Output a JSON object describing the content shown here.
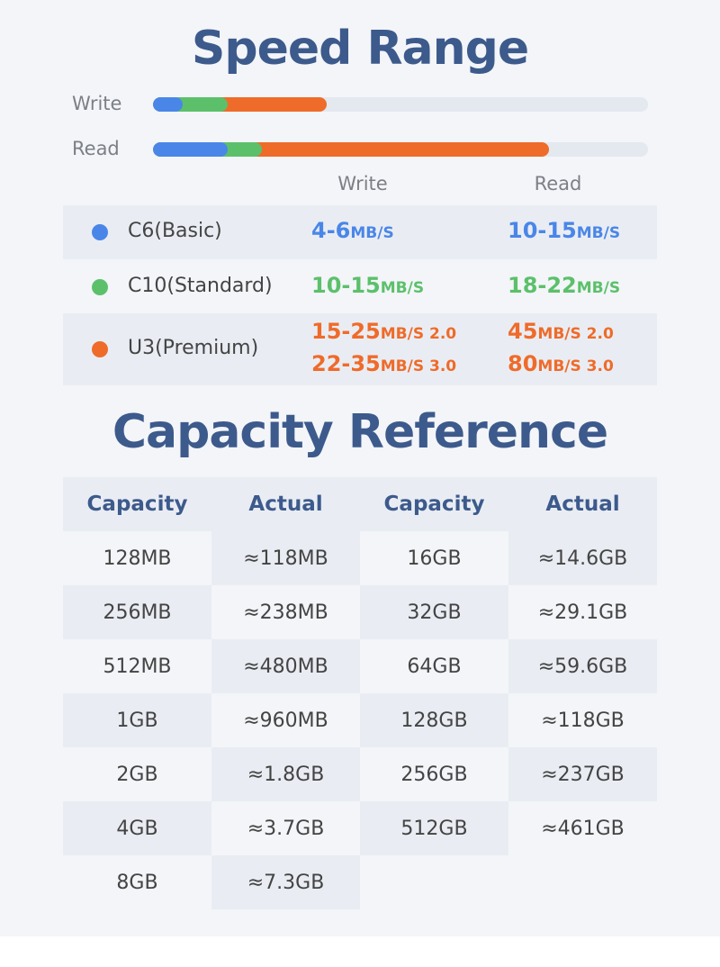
{
  "speed": {
    "title": "Speed Range",
    "write_label": "Write",
    "read_label": "Read",
    "write_bar": [
      {
        "color": "#4a86e8",
        "from": 0.0,
        "to": 0.06
      },
      {
        "color": "#5cc06b",
        "from": 0.06,
        "to": 0.15
      },
      {
        "color": "#ef6b2a",
        "from": 0.15,
        "to": 0.35
      }
    ],
    "read_bar": [
      {
        "color": "#4a86e8",
        "from": 0.0,
        "to": 0.15
      },
      {
        "color": "#5cc06b",
        "from": 0.15,
        "to": 0.22
      },
      {
        "color": "#ef6b2a",
        "from": 0.22,
        "to": 0.8
      }
    ],
    "col_write": "Write",
    "col_read": "Read",
    "rows": [
      {
        "name": "C6(Basic)",
        "color": "#4a86e8",
        "write": [
          {
            "num": "4-6",
            "unit": "MB/S"
          }
        ],
        "read": [
          {
            "num": "10-15",
            "unit": "MB/S"
          }
        ]
      },
      {
        "name": "C10(Standard)",
        "color": "#5cc06b",
        "write": [
          {
            "num": "10-15",
            "unit": "MB/S"
          }
        ],
        "read": [
          {
            "num": "18-22",
            "unit": "MB/S"
          }
        ]
      },
      {
        "name": "U3(Premium)",
        "color": "#ef6b2a",
        "write": [
          {
            "num": "15-25",
            "unit": "MB/S 2.0"
          },
          {
            "num": "22-35",
            "unit": "MB/S 3.0"
          }
        ],
        "read": [
          {
            "num": "45",
            "unit": "MB/S 2.0"
          },
          {
            "num": "80",
            "unit": "MB/S 3.0"
          }
        ]
      }
    ]
  },
  "capacity": {
    "title": "Capacity Reference",
    "headers": [
      "Capacity",
      "Actual",
      "Capacity",
      "Actual"
    ],
    "rows": [
      [
        "128MB",
        "≈118MB",
        "16GB",
        "≈14.6GB"
      ],
      [
        "256MB",
        "≈238MB",
        "32GB",
        "≈29.1GB"
      ],
      [
        "512MB",
        "≈480MB",
        "64GB",
        "≈59.6GB"
      ],
      [
        "1GB",
        "≈960MB",
        "128GB",
        "≈118GB"
      ],
      [
        "2GB",
        "≈1.8GB",
        "256GB",
        "≈237GB"
      ],
      [
        "4GB",
        "≈3.7GB",
        "512GB",
        "≈461GB"
      ],
      [
        "8GB",
        "≈7.3GB",
        "",
        ""
      ]
    ]
  }
}
